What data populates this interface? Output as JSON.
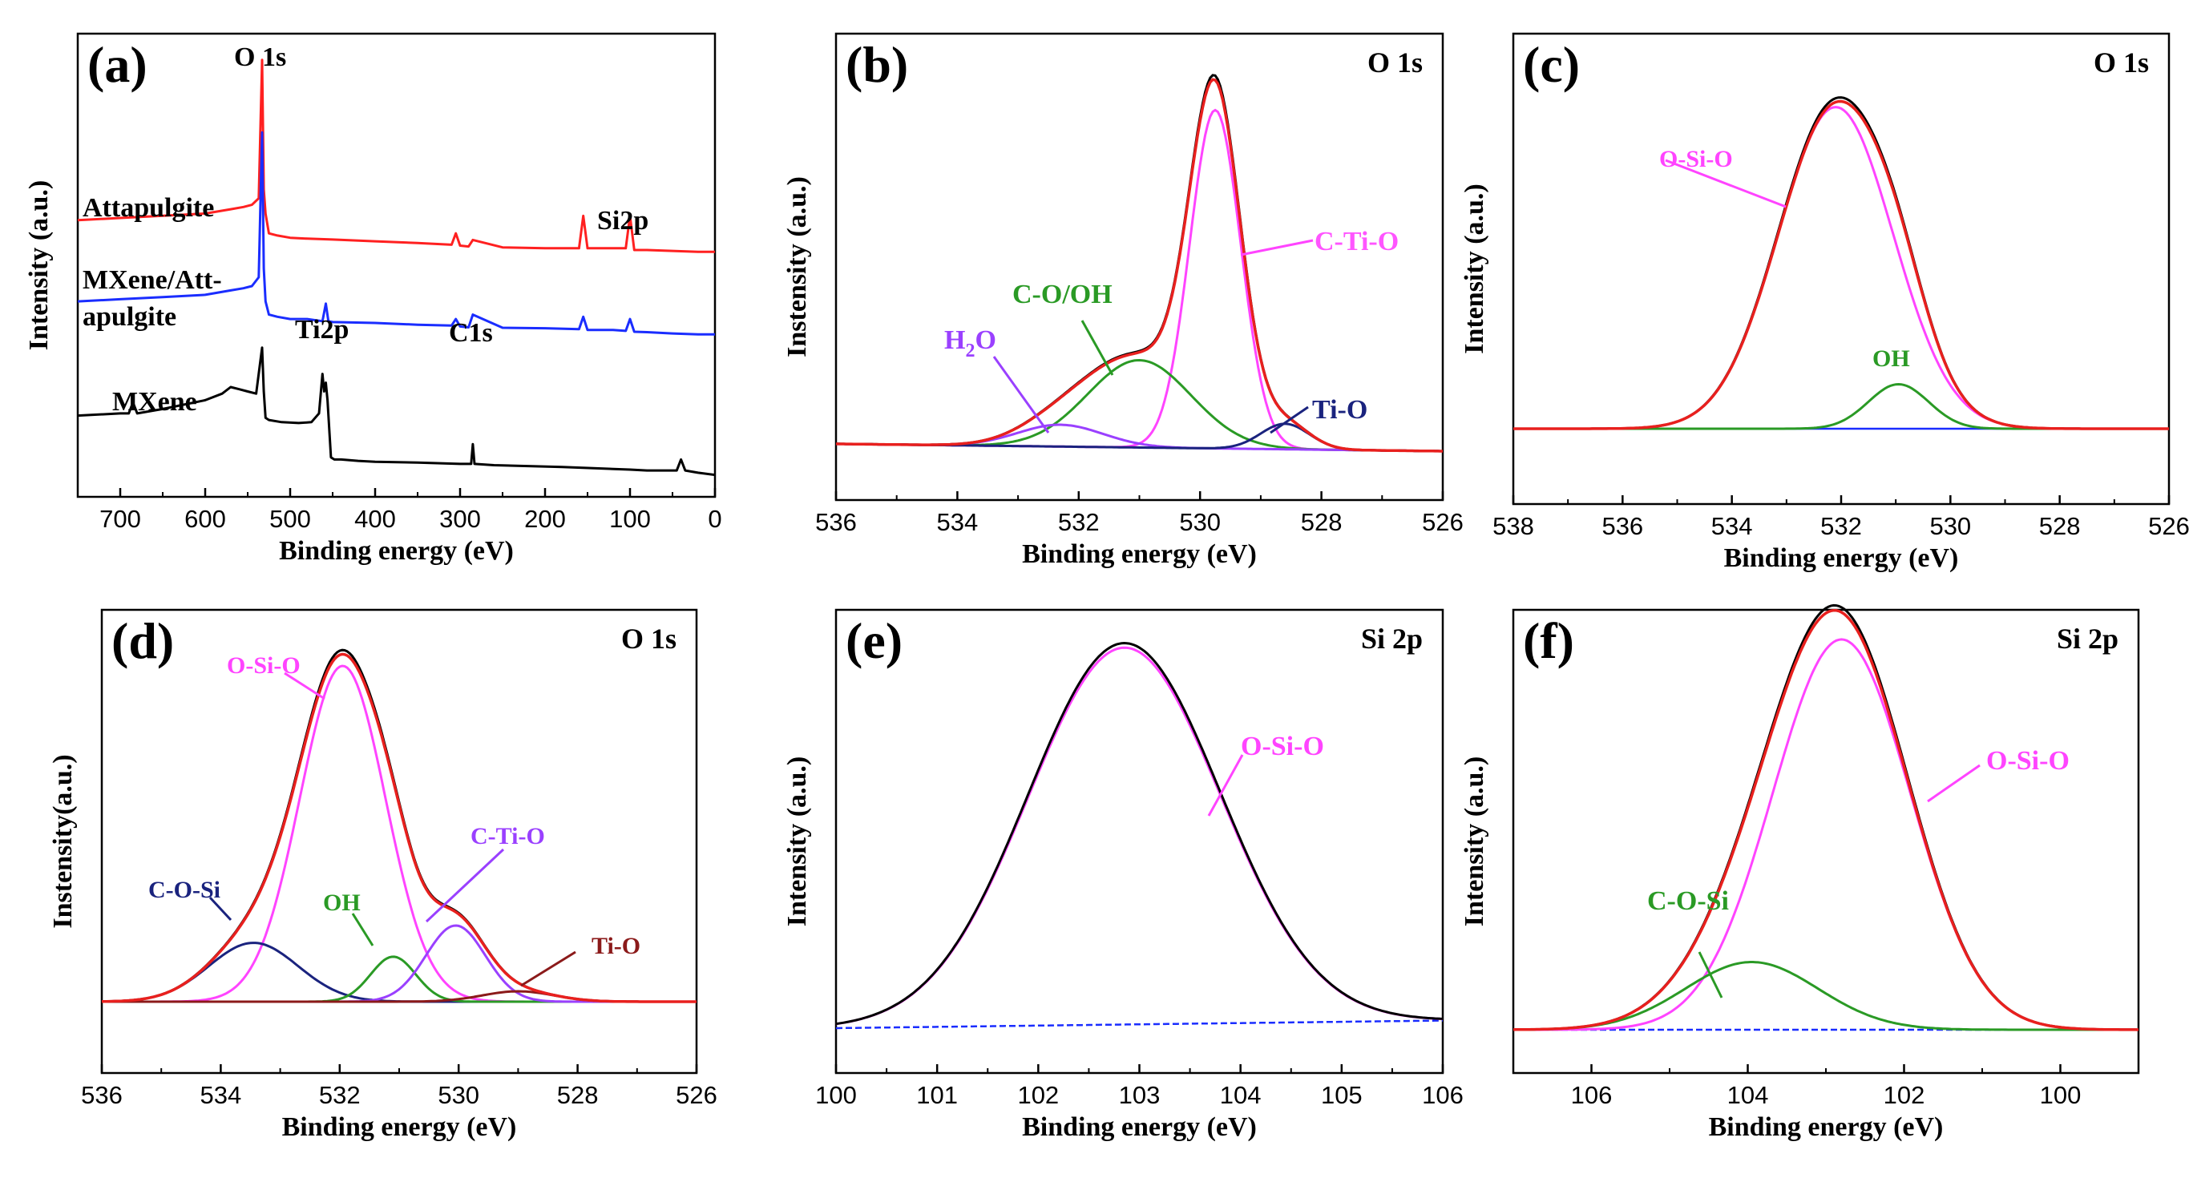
{
  "figure": {
    "description_free": true
  },
  "chart_data": [
    {
      "id": "a",
      "panel_letter": "(a)",
      "type": "line",
      "title": "",
      "xlabel": "Binding energy (eV)",
      "ylabel": "Intensity (a.u.)",
      "xlim": [
        750,
        0
      ],
      "xticks": [
        700,
        600,
        500,
        400,
        300,
        200,
        100,
        0
      ],
      "yticks_shown": false,
      "series": [
        {
          "name": "Attapulgite",
          "color": "#ff2020",
          "x": [
            750,
            700,
            650,
            600,
            570,
            555,
            545,
            537,
            533,
            531,
            529,
            525,
            515,
            500,
            480,
            450,
            400,
            350,
            310,
            305,
            300,
            290,
            285,
            250,
            200,
            160,
            155,
            150,
            120,
            105,
            100,
            95,
            80,
            50,
            20,
            0
          ],
          "y": [
            0.63,
            0.635,
            0.64,
            0.645,
            0.655,
            0.66,
            0.665,
            0.68,
            0.995,
            0.7,
            0.645,
            0.6,
            0.595,
            0.59,
            0.588,
            0.586,
            0.582,
            0.578,
            0.574,
            0.6,
            0.572,
            0.57,
            0.585,
            0.568,
            0.566,
            0.566,
            0.64,
            0.566,
            0.566,
            0.566,
            0.64,
            0.562,
            0.562,
            0.56,
            0.558,
            0.558
          ]
        },
        {
          "name": "MXene/Attapulgite",
          "color": "#1a2dff",
          "x": [
            750,
            700,
            650,
            600,
            570,
            555,
            545,
            537,
            533,
            531,
            529,
            525,
            515,
            500,
            480,
            462,
            458,
            455,
            450,
            400,
            350,
            310,
            305,
            300,
            290,
            285,
            250,
            200,
            160,
            155,
            150,
            120,
            105,
            100,
            95,
            80,
            50,
            20,
            0
          ],
          "y": [
            0.445,
            0.45,
            0.455,
            0.46,
            0.47,
            0.475,
            0.48,
            0.5,
            0.83,
            0.52,
            0.445,
            0.415,
            0.41,
            0.405,
            0.405,
            0.4,
            0.44,
            0.4,
            0.398,
            0.396,
            0.392,
            0.39,
            0.405,
            0.388,
            0.386,
            0.415,
            0.385,
            0.384,
            0.382,
            0.41,
            0.38,
            0.38,
            0.378,
            0.405,
            0.376,
            0.375,
            0.372,
            0.37,
            0.37
          ]
        },
        {
          "name": "MXene",
          "color": "#000000",
          "x": [
            750,
            700,
            690,
            685,
            680,
            650,
            600,
            580,
            570,
            560,
            550,
            540,
            533,
            531,
            529,
            525,
            510,
            490,
            475,
            466,
            462,
            460,
            458,
            456,
            452,
            448,
            440,
            420,
            400,
            350,
            300,
            287,
            285,
            283,
            260,
            220,
            180,
            140,
            100,
            80,
            60,
            45,
            40,
            35,
            20,
            0
          ],
          "y": [
            0.185,
            0.19,
            0.19,
            0.215,
            0.19,
            0.2,
            0.22,
            0.235,
            0.25,
            0.245,
            0.24,
            0.235,
            0.34,
            0.24,
            0.18,
            0.175,
            0.17,
            0.168,
            0.17,
            0.19,
            0.28,
            0.24,
            0.26,
            0.22,
            0.09,
            0.085,
            0.085,
            0.082,
            0.08,
            0.078,
            0.075,
            0.075,
            0.12,
            0.075,
            0.072,
            0.07,
            0.068,
            0.065,
            0.062,
            0.06,
            0.06,
            0.06,
            0.085,
            0.06,
            0.055,
            0.05
          ]
        }
      ],
      "annotations": [
        "O 1s",
        "Si2p",
        "Ti2p",
        "C1s",
        "Attapulgite",
        "MXene/Att-",
        "apulgite",
        "MXene"
      ]
    },
    {
      "id": "b",
      "panel_letter": "(b)",
      "type": "line",
      "corner_label": "O 1s",
      "xlabel": "Binding energy (eV)",
      "ylabel": "Instensity (a.u.)",
      "xlim": [
        536,
        526
      ],
      "xticks": [
        536,
        534,
        532,
        530,
        528,
        526
      ],
      "ylim": [
        0,
        1.1
      ],
      "series": [
        {
          "name": "Experimental",
          "color": "#000000",
          "kind": "envelope"
        },
        {
          "name": "Fitted envelope",
          "color": "#e8201e",
          "kind": "envelope"
        },
        {
          "name": "C-Ti-O",
          "color": "#ff44ff",
          "center": 529.75,
          "height": 0.93,
          "sigma": 0.42
        },
        {
          "name": "C-O/OH",
          "color": "#2a9a25",
          "center": 531.0,
          "height": 0.24,
          "sigma": 0.85
        },
        {
          "name": "H2O",
          "color": "#9a40ff",
          "center": 532.3,
          "height": 0.06,
          "sigma": 0.7
        },
        {
          "name": "Ti-O",
          "color": "#1a237e",
          "center": 528.6,
          "height": 0.07,
          "sigma": 0.4
        },
        {
          "name": "Baseline",
          "color": "#1a2dff",
          "kind": "baseline",
          "y_start": 0.02,
          "y_end": 0.0
        }
      ],
      "annotations": [
        "C-Ti-O",
        "C-O/OH",
        "H2O",
        "Ti-O"
      ]
    },
    {
      "id": "c",
      "panel_letter": "(c)",
      "type": "line",
      "corner_label": "O 1s",
      "xlabel": "Binding energy (eV)",
      "ylabel": "Intensity (a.u.)",
      "xlim": [
        538,
        526
      ],
      "xticks": [
        538,
        536,
        534,
        532,
        530,
        528,
        526
      ],
      "ylim": [
        0,
        1.1
      ],
      "series": [
        {
          "name": "Experimental",
          "color": "#000000",
          "kind": "envelope"
        },
        {
          "name": "Fitted envelope",
          "color": "#e8201e",
          "kind": "envelope"
        },
        {
          "name": "O-Si-O",
          "color": "#ff44ff",
          "center": 532.1,
          "height": 0.94,
          "sigma": 1.05
        },
        {
          "name": "OH",
          "color": "#2a9a25",
          "center": 530.95,
          "height": 0.13,
          "sigma": 0.55
        },
        {
          "name": "Baseline",
          "color": "#1a2dff",
          "kind": "baseline",
          "y_start": 0.0,
          "y_end": 0.0
        }
      ],
      "annotations": [
        "O-Si-O",
        "OH"
      ]
    },
    {
      "id": "d",
      "panel_letter": "(d)",
      "type": "line",
      "corner_label": "O 1s",
      "xlabel": "Binding energy (eV)",
      "ylabel": "Instensity(a.u.)",
      "xlim": [
        536,
        526
      ],
      "xticks": [
        536,
        534,
        532,
        530,
        528,
        526
      ],
      "ylim": [
        0,
        1.1
      ],
      "series": [
        {
          "name": "Experimental",
          "color": "#000000",
          "kind": "envelope"
        },
        {
          "name": "Fitted envelope",
          "color": "#e8201e",
          "kind": "envelope"
        },
        {
          "name": "O-Si-O",
          "color": "#ff44ff",
          "center": 531.95,
          "height": 0.97,
          "sigma": 0.72
        },
        {
          "name": "C-O-Si",
          "color": "#1a237e",
          "center": 533.45,
          "height": 0.17,
          "sigma": 0.75
        },
        {
          "name": "OH",
          "color": "#2a9a25",
          "center": 531.1,
          "height": 0.13,
          "sigma": 0.38
        },
        {
          "name": "C-Ti-O",
          "color": "#9a40ff",
          "center": 530.05,
          "height": 0.22,
          "sigma": 0.5
        },
        {
          "name": "Ti-O",
          "color": "#8b1a1a",
          "center": 529.0,
          "height": 0.03,
          "sigma": 0.6
        },
        {
          "name": "Baseline",
          "color": "#1a2dff",
          "kind": "baseline",
          "y_start": 0.0,
          "y_end": 0.0
        }
      ],
      "annotations": [
        "O-Si-O",
        "C-O-Si",
        "OH",
        "C-Ti-O",
        "Ti-O"
      ]
    },
    {
      "id": "e",
      "panel_letter": "(e)",
      "type": "line",
      "corner_label": "Si 2p",
      "xlabel": "Binding energy (eV)",
      "ylabel": "Intensity (a.u.)",
      "xlim": [
        100,
        106
      ],
      "xticks": [
        100,
        101,
        102,
        103,
        104,
        105,
        106
      ],
      "ylim": [
        0,
        1.1
      ],
      "series": [
        {
          "name": "Experimental",
          "color": "#000000",
          "kind": "envelope"
        },
        {
          "name": "O-Si-O",
          "color": "#ff44ff",
          "center": 102.85,
          "height": 0.99,
          "sigma": 0.95
        },
        {
          "name": "Baseline",
          "color": "#1a2dff",
          "kind": "baseline",
          "y_start": 0.0,
          "y_end": 0.02
        }
      ],
      "annotations": [
        "O-Si-O"
      ]
    },
    {
      "id": "f",
      "panel_letter": "(f)",
      "type": "line",
      "corner_label": "Si 2p",
      "xlabel": "Binding energy (eV)",
      "ylabel": "Intensity (a.u.)",
      "xlim": [
        107,
        99
      ],
      "xticks": [
        106,
        104,
        102,
        100
      ],
      "ylim": [
        0,
        1.1
      ],
      "series": [
        {
          "name": "Experimental",
          "color": "#000000",
          "kind": "envelope"
        },
        {
          "name": "Fitted envelope",
          "color": "#e8201e",
          "kind": "envelope"
        },
        {
          "name": "O-Si-O",
          "color": "#ff44ff",
          "center": 102.8,
          "height": 0.98,
          "sigma": 0.88
        },
        {
          "name": "C-O-Si",
          "color": "#2a9a25",
          "center": 103.95,
          "height": 0.17,
          "sigma": 0.85
        },
        {
          "name": "Baseline",
          "color": "#1a2dff",
          "kind": "baseline",
          "y_start": 0.0,
          "y_end": 0.0
        }
      ],
      "annotations": [
        "O-Si-O",
        "C-O-Si"
      ]
    }
  ],
  "text": {
    "a_O1s": "O 1s",
    "a_Si2p": "Si2p",
    "a_Ti2p": "Ti2p",
    "a_C1s": "C1s",
    "a_attapulgite": "Attapulgite",
    "a_mxatt1": "MXene/Att-",
    "a_mxatt2": "apulgite",
    "a_mxene": "MXene",
    "b_CTiO": "C-Ti-O",
    "b_COOH": "C-O/OH",
    "b_H2O_H": "H",
    "b_H2O_2": "2",
    "b_H2O_O": "O",
    "b_TiO": "Ti-O",
    "c_OSiO": "O-Si-O",
    "c_OH": "OH",
    "d_OSiO": "O-Si-O",
    "d_COSi": "C-O-Si",
    "d_OH": "OH",
    "d_CTiO": "C-Ti-O",
    "d_TiO": "Ti-O",
    "e_OSiO": "O-Si-O",
    "f_OSiO": "O-Si-O",
    "f_COSi": "C-O-Si"
  }
}
